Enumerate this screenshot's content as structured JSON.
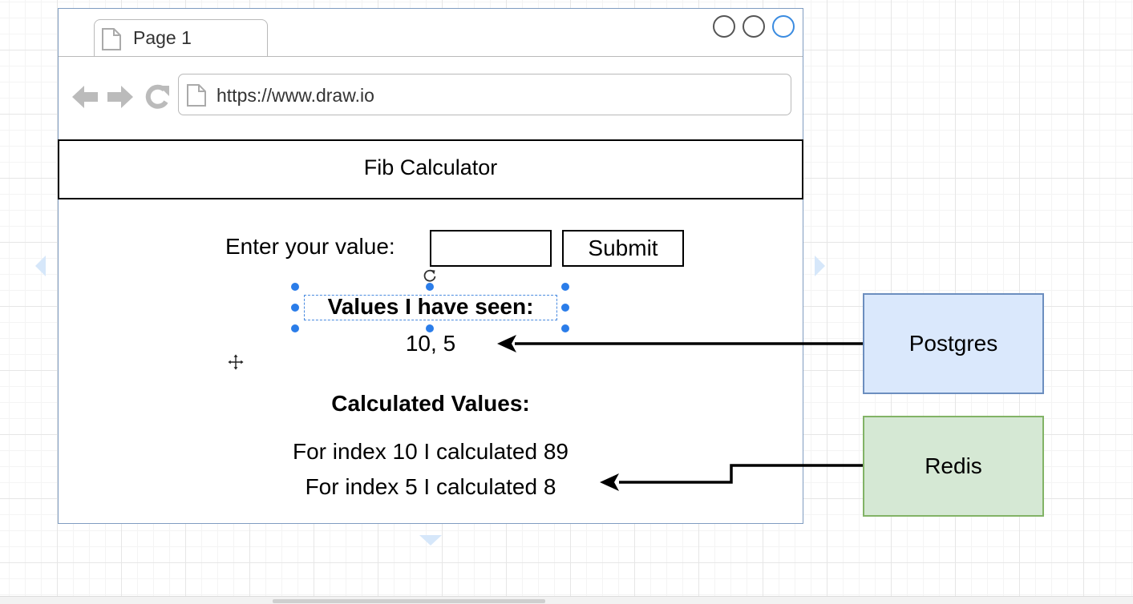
{
  "browser": {
    "tab_label": "Page 1",
    "url": "https://www.draw.io",
    "nav_icons": [
      "back-arrow-icon",
      "forward-arrow-icon",
      "reload-icon",
      "page-icon"
    ]
  },
  "app": {
    "title": "Fib Calculator",
    "input_label": "Enter your value:",
    "input_value": "",
    "submit_label": "Submit",
    "seen_heading": "Values I have seen:",
    "seen_values": "10, 5",
    "calc_heading": "Calculated Values:",
    "calc_rows": [
      "For index 10 I calculated 89",
      "For index 5 I calculated 8"
    ]
  },
  "services": {
    "postgres": {
      "label": "Postgres",
      "fill": "#dae8fc",
      "stroke": "#6c8ebf"
    },
    "redis": {
      "label": "Redis",
      "fill": "#d5e8d4",
      "stroke": "#82b366"
    }
  },
  "selection_color": "#2b7de9"
}
